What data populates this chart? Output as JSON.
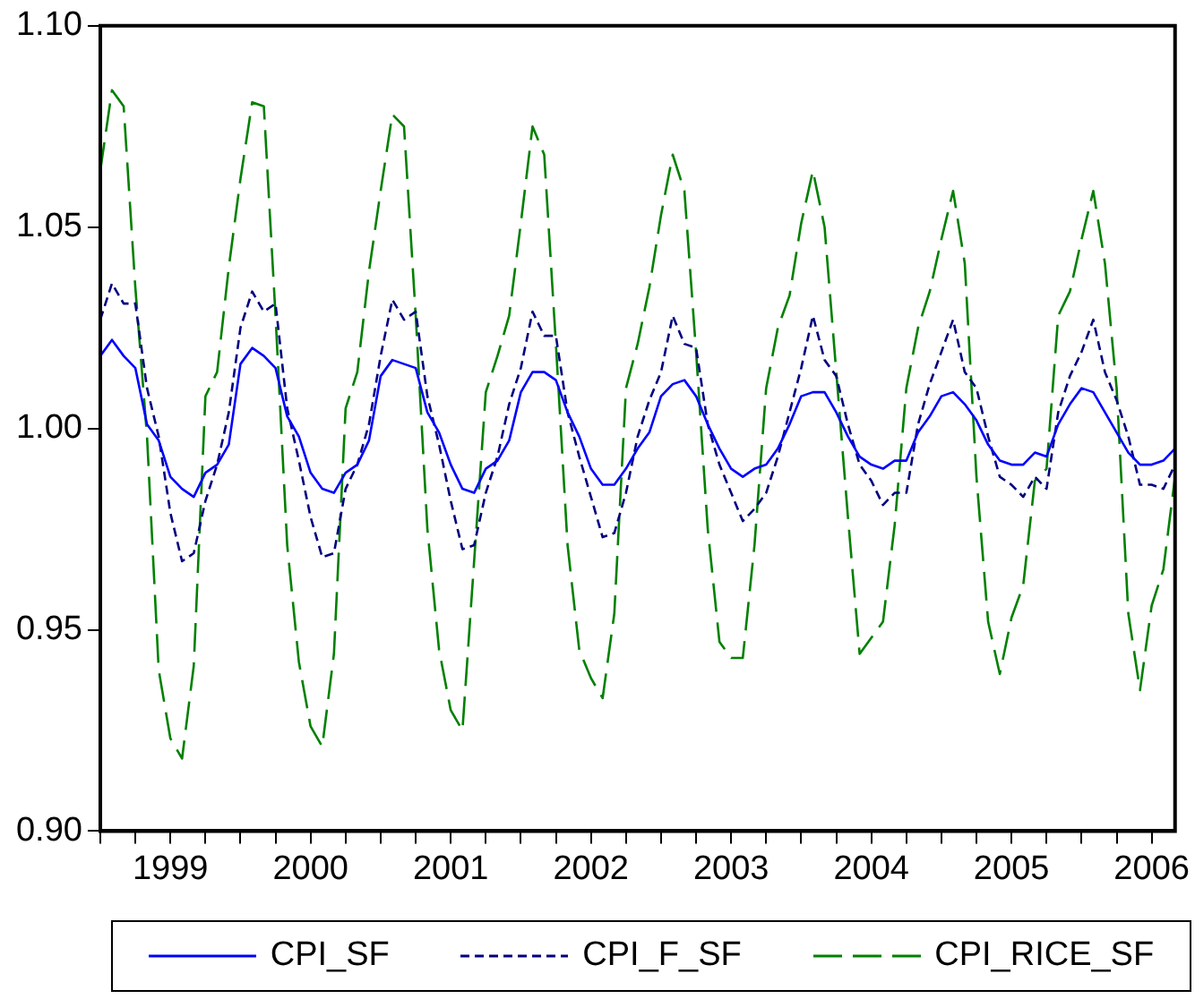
{
  "chart_data": {
    "type": "line",
    "legend": "bottom",
    "grid": false,
    "marker": "none",
    "xlim": [
      "1999-01",
      "2006-09"
    ],
    "ylim": [
      0.9,
      1.1
    ],
    "yticks": [
      {
        "value": 0.9,
        "label": "0.90"
      },
      {
        "value": 0.95,
        "label": "0.95"
      },
      {
        "value": 1.0,
        "label": "1.00"
      },
      {
        "value": 1.05,
        "label": "1.05"
      },
      {
        "value": 1.1,
        "label": "1.10"
      }
    ],
    "xticks": [
      {
        "value": "1999-01",
        "label": null
      },
      {
        "value": "1999-04",
        "label": null
      },
      {
        "value": "1999-07",
        "label": "1999"
      },
      {
        "value": "1999-10",
        "label": null
      },
      {
        "value": "2000-01",
        "label": null
      },
      {
        "value": "2000-04",
        "label": null
      },
      {
        "value": "2000-07",
        "label": "2000"
      },
      {
        "value": "2000-10",
        "label": null
      },
      {
        "value": "2001-01",
        "label": null
      },
      {
        "value": "2001-04",
        "label": null
      },
      {
        "value": "2001-07",
        "label": "2001"
      },
      {
        "value": "2001-10",
        "label": null
      },
      {
        "value": "2002-01",
        "label": null
      },
      {
        "value": "2002-04",
        "label": null
      },
      {
        "value": "2002-07",
        "label": "2002"
      },
      {
        "value": "2002-10",
        "label": null
      },
      {
        "value": "2003-01",
        "label": null
      },
      {
        "value": "2003-04",
        "label": null
      },
      {
        "value": "2003-07",
        "label": "2003"
      },
      {
        "value": "2003-10",
        "label": null
      },
      {
        "value": "2004-01",
        "label": null
      },
      {
        "value": "2004-04",
        "label": null
      },
      {
        "value": "2004-07",
        "label": "2004"
      },
      {
        "value": "2004-10",
        "label": null
      },
      {
        "value": "2005-01",
        "label": null
      },
      {
        "value": "2005-04",
        "label": null
      },
      {
        "value": "2005-07",
        "label": "2005"
      },
      {
        "value": "2005-10",
        "label": null
      },
      {
        "value": "2006-01",
        "label": null
      },
      {
        "value": "2006-04",
        "label": null
      },
      {
        "value": "2006-07",
        "label": "2006"
      }
    ],
    "x": [
      "1999-01",
      "1999-02",
      "1999-03",
      "1999-04",
      "1999-05",
      "1999-06",
      "1999-07",
      "1999-08",
      "1999-09",
      "1999-10",
      "1999-11",
      "1999-12",
      "2000-01",
      "2000-02",
      "2000-03",
      "2000-04",
      "2000-05",
      "2000-06",
      "2000-07",
      "2000-08",
      "2000-09",
      "2000-10",
      "2000-11",
      "2000-12",
      "2001-01",
      "2001-02",
      "2001-03",
      "2001-04",
      "2001-05",
      "2001-06",
      "2001-07",
      "2001-08",
      "2001-09",
      "2001-10",
      "2001-11",
      "2001-12",
      "2002-01",
      "2002-02",
      "2002-03",
      "2002-04",
      "2002-05",
      "2002-06",
      "2002-07",
      "2002-08",
      "2002-09",
      "2002-10",
      "2002-11",
      "2002-12",
      "2003-01",
      "2003-02",
      "2003-03",
      "2003-04",
      "2003-05",
      "2003-06",
      "2003-07",
      "2003-08",
      "2003-09",
      "2003-10",
      "2003-11",
      "2003-12",
      "2004-01",
      "2004-02",
      "2004-03",
      "2004-04",
      "2004-05",
      "2004-06",
      "2004-07",
      "2004-08",
      "2004-09",
      "2004-10",
      "2004-11",
      "2004-12",
      "2005-01",
      "2005-02",
      "2005-03",
      "2005-04",
      "2005-05",
      "2005-06",
      "2005-07",
      "2005-08",
      "2005-09",
      "2005-10",
      "2005-11",
      "2005-12",
      "2006-01",
      "2006-02",
      "2006-03",
      "2006-04",
      "2006-05",
      "2006-06",
      "2006-07",
      "2006-08",
      "2006-09"
    ],
    "series": [
      {
        "name": "CPI_SF",
        "color": "#0000ff",
        "line_style": "solid",
        "values": [
          1.018,
          1.022,
          1.018,
          1.015,
          1.001,
          0.997,
          0.988,
          0.985,
          0.983,
          0.989,
          0.991,
          0.996,
          1.016,
          1.02,
          1.018,
          1.015,
          1.003,
          0.998,
          0.989,
          0.985,
          0.984,
          0.989,
          0.991,
          0.997,
          1.013,
          1.017,
          1.016,
          1.015,
          1.004,
          0.999,
          0.991,
          0.985,
          0.984,
          0.99,
          0.992,
          0.997,
          1.009,
          1.014,
          1.014,
          1.012,
          1.004,
          0.998,
          0.99,
          0.986,
          0.986,
          0.99,
          0.995,
          0.999,
          1.008,
          1.011,
          1.012,
          1.008,
          1.001,
          0.995,
          0.99,
          0.988,
          0.99,
          0.991,
          0.995,
          1.001,
          1.008,
          1.009,
          1.009,
          1.004,
          0.998,
          0.993,
          0.991,
          0.99,
          0.992,
          0.992,
          0.999,
          1.003,
          1.008,
          1.009,
          1.006,
          1.002,
          0.996,
          0.992,
          0.991,
          0.991,
          0.994,
          0.993,
          1.001,
          1.006,
          1.01,
          1.009,
          1.004,
          0.999,
          0.994,
          0.991,
          0.991,
          0.992,
          0.995
        ]
      },
      {
        "name": "CPI_F_SF",
        "color": "#000080",
        "line_style": "dashed",
        "values": [
          1.027,
          1.036,
          1.031,
          1.031,
          1.01,
          0.998,
          0.979,
          0.967,
          0.969,
          0.982,
          0.991,
          1.004,
          1.025,
          1.034,
          1.029,
          1.031,
          1.005,
          0.992,
          0.978,
          0.968,
          0.969,
          0.985,
          0.991,
          1.001,
          1.018,
          1.032,
          1.027,
          1.029,
          1.008,
          0.996,
          0.982,
          0.97,
          0.971,
          0.984,
          0.993,
          1.006,
          1.015,
          1.029,
          1.023,
          1.023,
          1.004,
          0.993,
          0.983,
          0.973,
          0.974,
          0.984,
          0.998,
          1.007,
          1.014,
          1.028,
          1.021,
          1.02,
          1.001,
          0.991,
          0.984,
          0.977,
          0.98,
          0.984,
          0.993,
          1.004,
          1.015,
          1.028,
          1.017,
          1.013,
          1.001,
          0.991,
          0.987,
          0.981,
          0.984,
          0.984,
          1.001,
          1.011,
          1.019,
          1.027,
          1.014,
          1.01,
          0.998,
          0.988,
          0.986,
          0.983,
          0.988,
          0.985,
          1.004,
          1.013,
          1.019,
          1.027,
          1.014,
          1.007,
          0.998,
          0.986,
          0.986,
          0.985,
          0.991
        ]
      },
      {
        "name": "CPI_RICE_SF",
        "color": "#008000",
        "line_style": "dashed",
        "values": [
          1.064,
          1.084,
          1.08,
          1.035,
          0.998,
          0.94,
          0.923,
          0.918,
          0.941,
          1.008,
          1.014,
          1.04,
          1.062,
          1.081,
          1.08,
          1.028,
          0.971,
          0.942,
          0.926,
          0.921,
          0.944,
          1.005,
          1.014,
          1.039,
          1.059,
          1.078,
          1.075,
          1.028,
          0.975,
          0.945,
          0.93,
          0.925,
          0.967,
          1.009,
          1.018,
          1.028,
          1.051,
          1.075,
          1.068,
          1.021,
          0.971,
          0.945,
          0.938,
          0.933,
          0.954,
          1.01,
          1.021,
          1.035,
          1.053,
          1.068,
          1.059,
          1.019,
          0.975,
          0.947,
          0.943,
          0.943,
          0.971,
          1.01,
          1.025,
          1.033,
          1.051,
          1.064,
          1.05,
          1.014,
          0.978,
          0.944,
          0.948,
          0.952,
          0.976,
          1.01,
          1.025,
          1.034,
          1.047,
          1.059,
          1.041,
          0.988,
          0.952,
          0.939,
          0.953,
          0.961,
          0.987,
          0.99,
          1.028,
          1.034,
          1.047,
          1.059,
          1.041,
          1.01,
          0.954,
          0.935,
          0.956,
          0.965,
          0.988
        ]
      }
    ]
  }
}
